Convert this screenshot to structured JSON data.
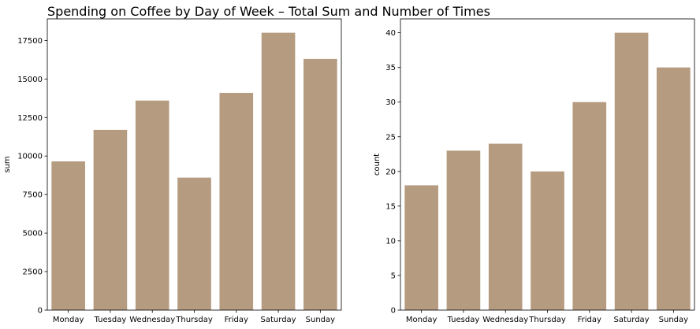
{
  "title": "Spending on Coffee by Day of Week – Total Sum and Number of Times",
  "bar_color": "#b59b80",
  "chart_data": [
    {
      "type": "bar",
      "categories": [
        "Monday",
        "Tuesday",
        "Wednesday",
        "Thursday",
        "Friday",
        "Saturday",
        "Sunday"
      ],
      "values": [
        9650,
        11700,
        13600,
        8600,
        14100,
        18000,
        16300
      ],
      "xlabel": "",
      "ylabel": "sum",
      "ylim": [
        0,
        18900
      ],
      "yticks": [
        0,
        2500,
        5000,
        7500,
        10000,
        12500,
        15000,
        17500
      ],
      "grid": false
    },
    {
      "type": "bar",
      "categories": [
        "Monday",
        "Tuesday",
        "Wednesday",
        "Thursday",
        "Friday",
        "Saturday",
        "Sunday"
      ],
      "values": [
        18,
        23,
        24,
        20,
        30,
        40,
        35
      ],
      "xlabel": "",
      "ylabel": "count",
      "ylim": [
        0,
        42
      ],
      "yticks": [
        0,
        5,
        10,
        15,
        20,
        25,
        30,
        35,
        40
      ],
      "grid": false
    }
  ]
}
